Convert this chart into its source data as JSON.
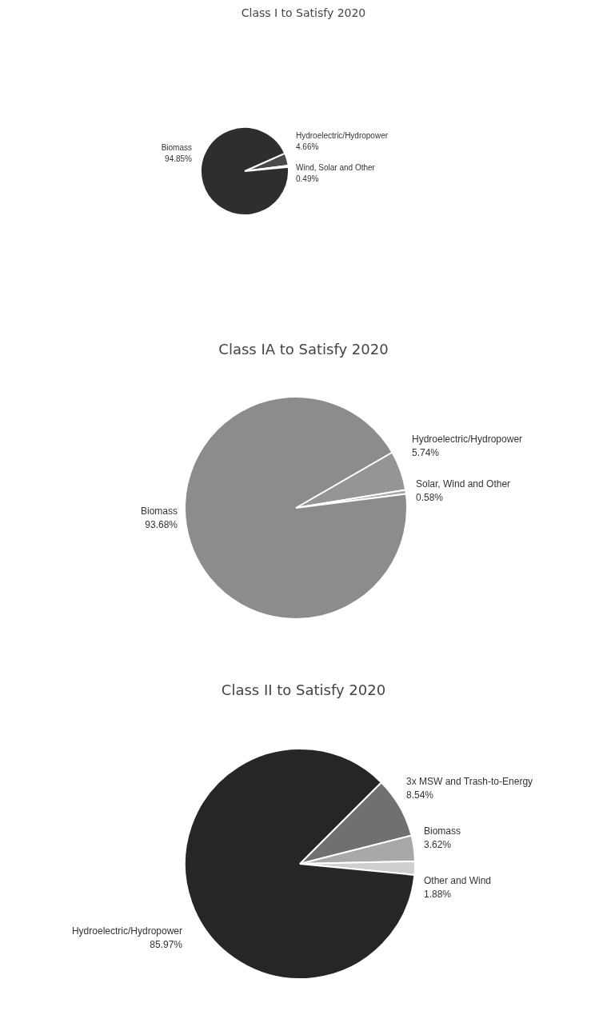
{
  "chart_data": [
    {
      "type": "pie",
      "title": "Class I to Satisfy 2020",
      "categories": [
        "Hydroelectric/Hydropower",
        "Wind, Solar and Other",
        "Biomass"
      ],
      "values": [
        4.66,
        0.49,
        94.85
      ],
      "colors": [
        "#4a4a4a",
        "#7a7a7a",
        "#2e2e2e"
      ],
      "value_labels": [
        "4.66%",
        "0.49%",
        "94.85%"
      ]
    },
    {
      "type": "pie",
      "title": "Class IA to Satisfy 2020",
      "categories": [
        "Hydroelectric/Hydropower",
        "Solar, Wind and Other",
        "Biomass"
      ],
      "values": [
        5.74,
        0.58,
        93.68
      ],
      "colors": [
        "#959595",
        "#a5a5a5",
        "#8c8c8c"
      ],
      "value_labels": [
        "5.74%",
        "0.58%",
        "93.68%"
      ]
    },
    {
      "type": "pie",
      "title": "Class II to Satisfy 2020",
      "categories": [
        "3x MSW and Trash-to-Energy",
        "Biomass",
        "Other and Wind",
        "Hydroelectric/Hydropower"
      ],
      "values": [
        8.54,
        3.62,
        1.88,
        85.97
      ],
      "colors": [
        "#707070",
        "#a8a8a8",
        "#cfcfcf",
        "#262626"
      ],
      "value_labels": [
        "8.54%",
        "3.62%",
        "1.88%",
        "85.97%"
      ]
    }
  ]
}
